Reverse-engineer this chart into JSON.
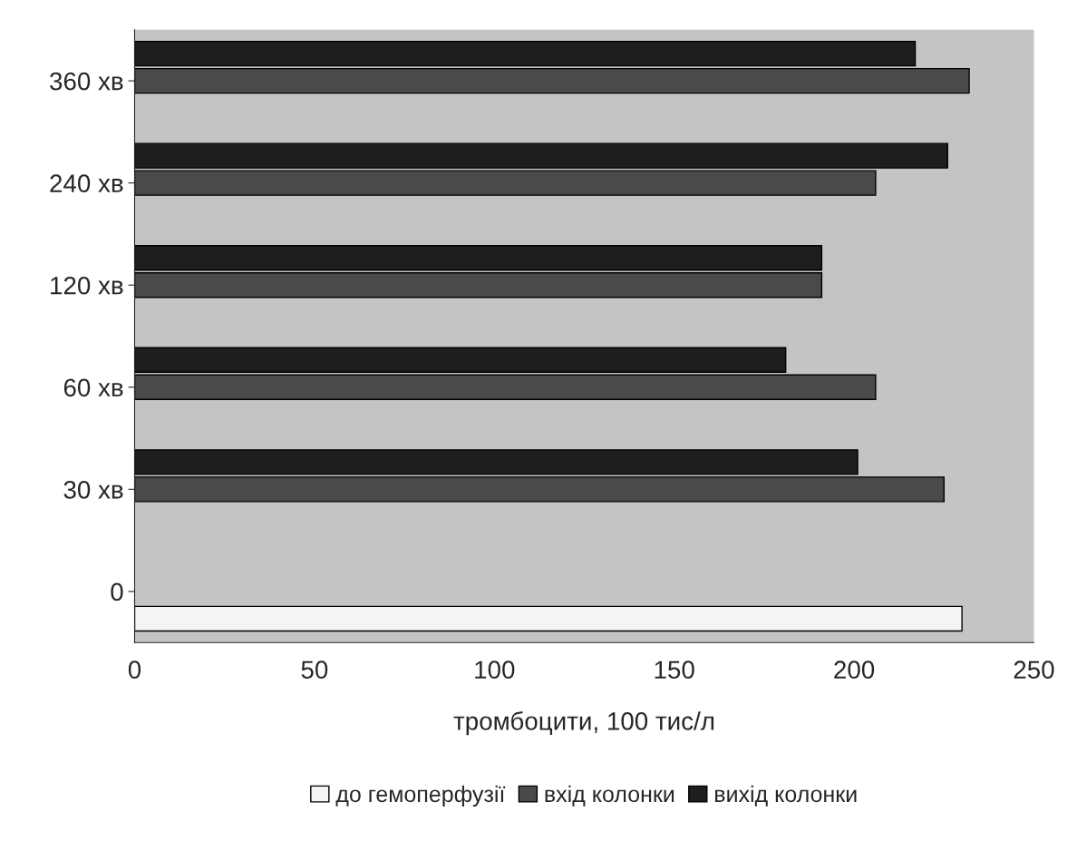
{
  "chart_data": {
    "type": "bar",
    "orientation": "horizontal",
    "xlabel": "тромбоцити, 100 тис/л",
    "categories": [
      "360 хв",
      "240 хв",
      "120 хв",
      "60 хв",
      "30 хв",
      "0"
    ],
    "series": [
      {
        "name": "до гемоперфузії",
        "color": "#f4f4f4",
        "values": [
          null,
          null,
          null,
          null,
          null,
          230
        ]
      },
      {
        "name": "вхід колонки",
        "color": "#4a4a4a",
        "values": [
          232,
          206,
          191,
          206,
          225,
          null
        ]
      },
      {
        "name": "вихід колонки",
        "color": "#1e1e1e",
        "values": [
          217,
          226,
          191,
          181,
          201,
          null
        ]
      }
    ],
    "xlim": [
      0,
      250
    ],
    "xticks": [
      0,
      50,
      100,
      150,
      200,
      250
    ],
    "grid": false,
    "legend": "bottom"
  }
}
